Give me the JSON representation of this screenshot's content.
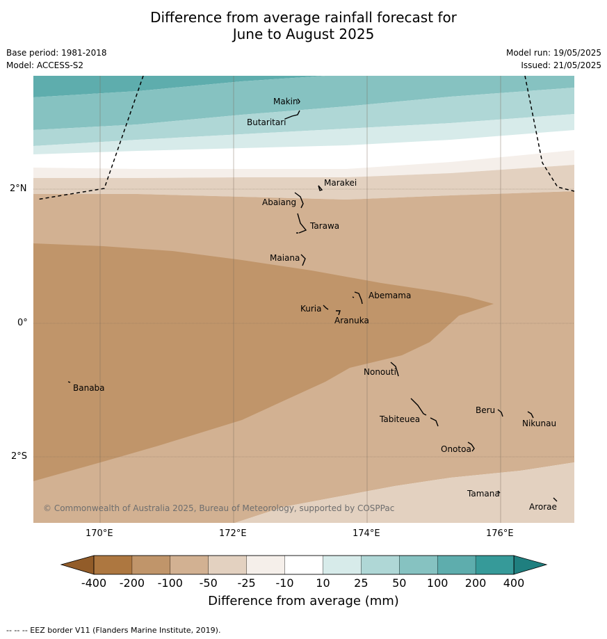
{
  "title": {
    "line1": "Difference from average rainfall forecast for",
    "line2": "June to August 2025"
  },
  "meta": {
    "base_period": "Base period: 1981-2018",
    "model": "Model: ACCESS-S2",
    "model_run": "Model run: 19/05/2025",
    "issued": "Issued: 21/05/2025"
  },
  "map": {
    "lat_labels": [
      "2°N",
      "0°",
      "2°S"
    ],
    "lon_labels": [
      "170°E",
      "172°E",
      "174°E",
      "176°E"
    ],
    "places": {
      "makin": "Makin",
      "butaritari": "Butaritari",
      "marakei": "Marakei",
      "abaiang": "Abaiang",
      "tarawa": "Tarawa",
      "maiana": "Maiana",
      "abemama": "Abemama",
      "kuria": "Kuria",
      "aranuka": "Aranuka",
      "banaba": "Banaba",
      "nonouti": "Nonouti",
      "tabiteuea": "Tabiteuea",
      "beru": "Beru",
      "nikunau": "Nikunau",
      "onotoa": "Onotoa",
      "tamana": "Tamana",
      "arorae": "Arorae"
    },
    "copyright": "© Commonwealth of Australia 2025, Bureau of Meteorology, supported by COSPPac"
  },
  "colorbar": {
    "labels": [
      "-400",
      "-200",
      "-100",
      "-50",
      "-25",
      "-10",
      "10",
      "25",
      "50",
      "100",
      "200",
      "400"
    ],
    "colors": [
      "#ad7740",
      "#c0956a",
      "#d2b192",
      "#e3d1c0",
      "#f5efea",
      "#ffffff",
      "#d7ebea",
      "#afd7d6",
      "#86c2c1",
      "#5eadad",
      "#369a99"
    ],
    "end_low_color": "#925c29",
    "end_high_color": "#1f7f7f",
    "title": "Difference from average (mm)"
  },
  "footnote": "--  --  -- EEZ border V11 (Flanders Marine Institute, 2019)."
}
